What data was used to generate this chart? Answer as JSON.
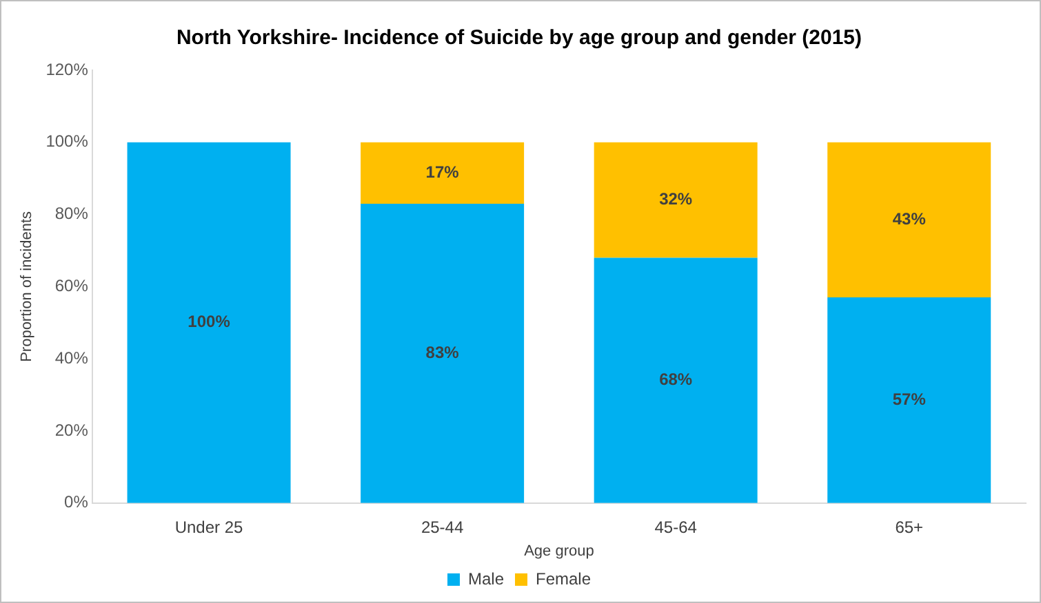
{
  "chart_data": {
    "type": "bar",
    "title": "North Yorkshire- Incidence of Suicide by age group and gender (2015)",
    "xlabel": "Age group",
    "ylabel": "Proportion of incidents",
    "categories": [
      "Under 25",
      "25-44",
      "45-64",
      "65+"
    ],
    "stacked": true,
    "series": [
      {
        "name": "Male",
        "color": "#00b0f0",
        "values": [
          100,
          83,
          68,
          57
        ],
        "value_labels": [
          "100%",
          "83%",
          "68%",
          "57%"
        ]
      },
      {
        "name": "Female",
        "color": "#ffc000",
        "values": [
          0,
          17,
          32,
          43
        ],
        "value_labels": [
          null,
          "17%",
          "32%",
          "43%"
        ]
      }
    ],
    "ylim": [
      0,
      120
    ],
    "yticks": [
      {
        "value": 0,
        "label": "0%"
      },
      {
        "value": 20,
        "label": "20%"
      },
      {
        "value": 40,
        "label": "40%"
      },
      {
        "value": 60,
        "label": "60%"
      },
      {
        "value": 80,
        "label": "80%"
      },
      {
        "value": 100,
        "label": "100%"
      },
      {
        "value": 120,
        "label": "120%"
      }
    ],
    "grid": false,
    "legend": "bottom"
  }
}
